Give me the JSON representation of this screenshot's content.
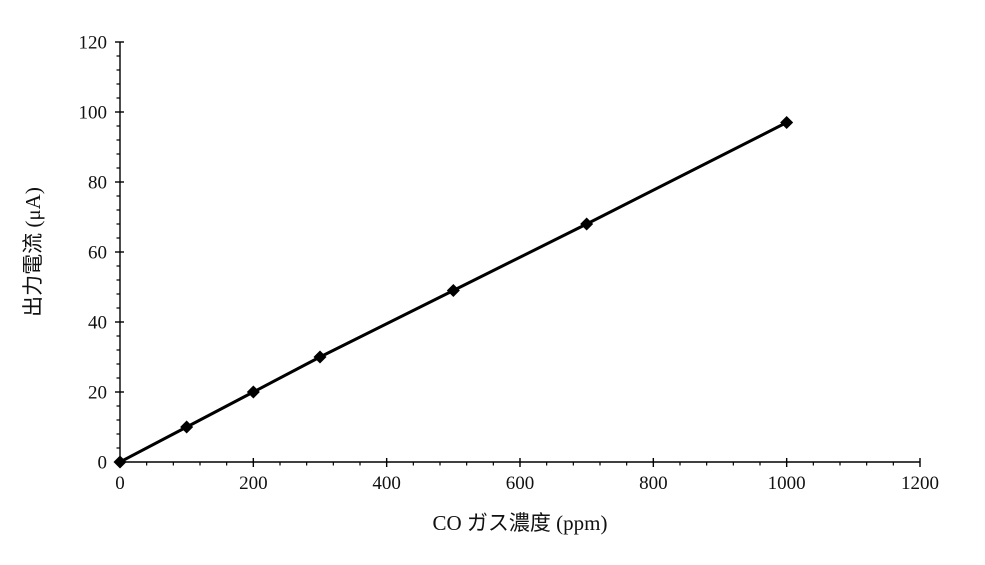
{
  "chart_data": {
    "type": "line",
    "title": "",
    "xlabel": "CO ガス濃度 (ppm)",
    "ylabel": "出力電流 (μA)",
    "x": [
      0,
      100,
      200,
      300,
      500,
      700,
      1000
    ],
    "y": [
      0,
      10,
      20,
      30,
      49,
      68,
      97
    ],
    "xlim": [
      0,
      1200
    ],
    "ylim": [
      0,
      120
    ],
    "xticks": [
      0,
      200,
      400,
      600,
      800,
      1000,
      1200
    ],
    "yticks": [
      0,
      20,
      40,
      60,
      80,
      100,
      120
    ],
    "x_minor_step": 40,
    "y_minor_step": 4,
    "grid": false,
    "legend": false,
    "marker": "diamond",
    "line_color": "#000000",
    "marker_color": "#000000",
    "axis_color": "#000000"
  }
}
